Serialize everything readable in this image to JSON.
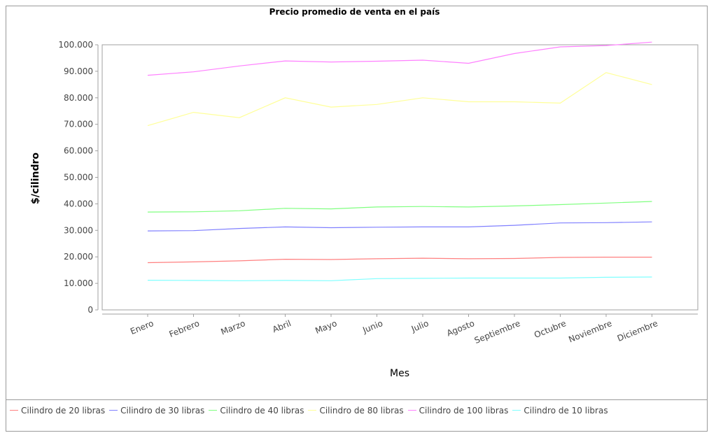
{
  "chart_data": {
    "type": "line",
    "title": "Precio promedio de venta en el país",
    "xlabel": "Mes",
    "ylabel": "$/cilindro",
    "categories": [
      "Enero",
      "Febrero",
      "Marzo",
      "Abril",
      "Mayo",
      "Junio",
      "Julio",
      "Agosto",
      "Septiembre",
      "Octubre",
      "Noviembre",
      "Diciembre"
    ],
    "ylim": [
      0,
      100000
    ],
    "yticks": [
      0,
      10000,
      20000,
      30000,
      40000,
      50000,
      60000,
      70000,
      80000,
      90000,
      100000
    ],
    "ytick_labels": [
      "0",
      "10.000",
      "20.000",
      "30.000",
      "40.000",
      "50.000",
      "60.000",
      "70.000",
      "80.000",
      "90.000",
      "100.000"
    ],
    "grid": false,
    "legend_position": "bottom",
    "series": [
      {
        "name": "Cilindro de 20 libras",
        "color": "#ff8080",
        "values": [
          17800,
          18100,
          18500,
          19100,
          19000,
          19300,
          19500,
          19300,
          19400,
          19800,
          19900,
          19900
        ]
      },
      {
        "name": "Cilindro de 30 libras",
        "color": "#8080ff",
        "values": [
          29800,
          29900,
          30700,
          31300,
          31000,
          31200,
          31300,
          31300,
          31900,
          32800,
          32900,
          33200
        ]
      },
      {
        "name": "Cilindro de 40 libras",
        "color": "#80ff80",
        "values": [
          36900,
          37000,
          37400,
          38300,
          38100,
          38800,
          39000,
          38800,
          39200,
          39700,
          40300,
          40900
        ]
      },
      {
        "name": "Cilindro de 80 libras",
        "color": "#ffff99",
        "values": [
          69500,
          74500,
          72500,
          80000,
          76500,
          77500,
          80000,
          78500,
          78500,
          78000,
          89500,
          85000
        ]
      },
      {
        "name": "Cilindro de 100 libras",
        "color": "#ff80ff",
        "values": [
          88500,
          89800,
          92000,
          93900,
          93500,
          93800,
          94200,
          93000,
          96700,
          99200,
          99700,
          101000
        ]
      },
      {
        "name": "Cilindro de 10 libras",
        "color": "#80ffff",
        "values": [
          11200,
          11100,
          11000,
          11100,
          11000,
          11800,
          11900,
          12000,
          12000,
          12000,
          12300,
          12400
        ]
      }
    ]
  }
}
